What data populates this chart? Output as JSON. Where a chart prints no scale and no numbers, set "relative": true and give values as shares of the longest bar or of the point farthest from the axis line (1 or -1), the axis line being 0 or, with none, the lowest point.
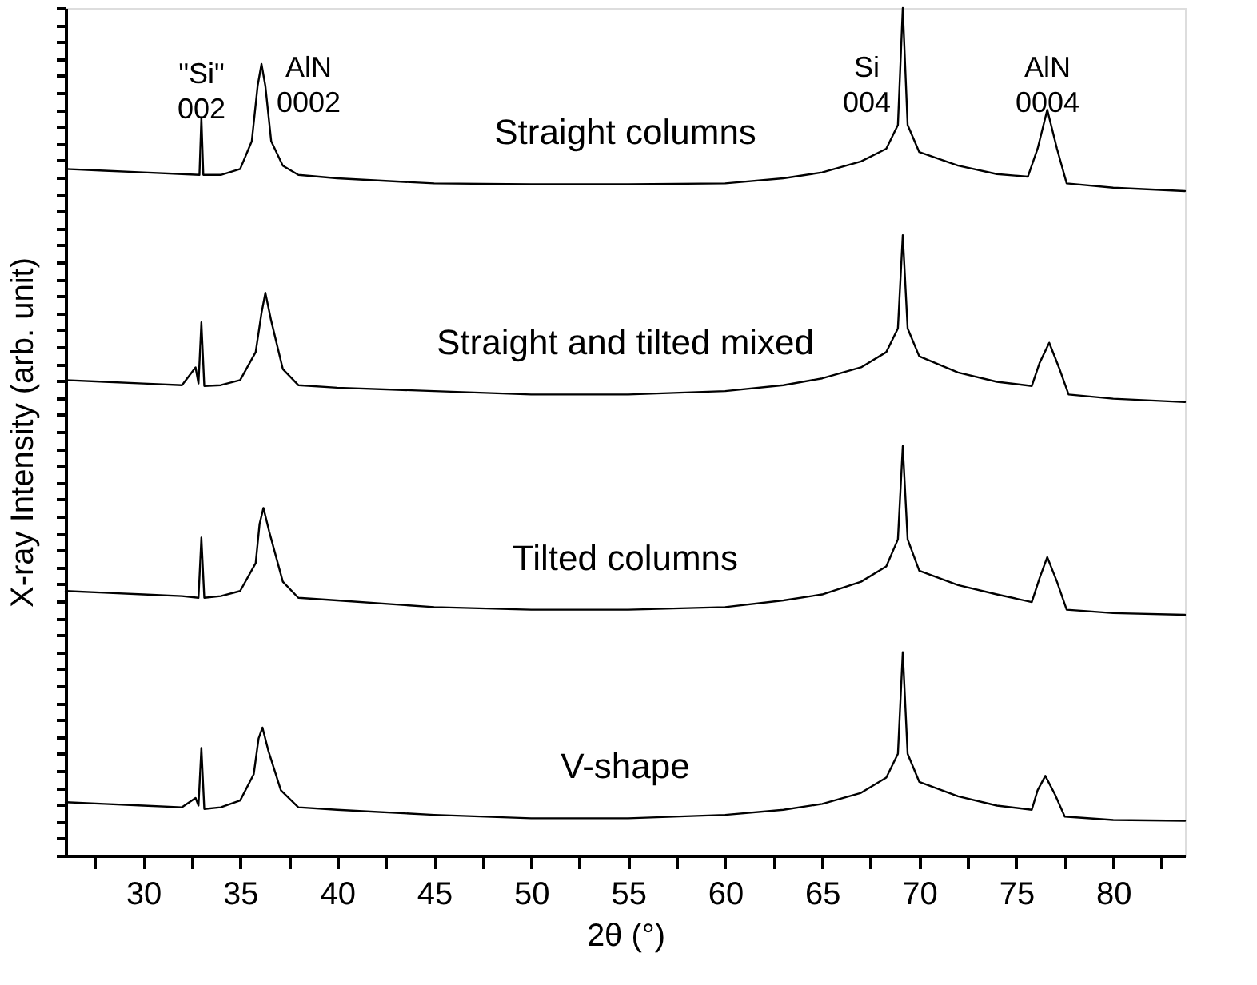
{
  "chart_data": {
    "type": "line",
    "xlabel": "2θ (°)",
    "ylabel": "X-ray Intensity (arb. unit)",
    "relative": true,
    "tick_labels": "x",
    "grid": false,
    "marker": "none",
    "line_style": "solid",
    "xlim": [
      26,
      83.7
    ],
    "xticks": [
      {
        "value": 27.5,
        "label": null
      },
      30,
      {
        "value": 32.5,
        "label": null
      },
      35,
      {
        "value": 37.5,
        "label": null
      },
      40,
      {
        "value": 42.5,
        "label": null
      },
      45,
      {
        "value": 47.5,
        "label": null
      },
      50,
      {
        "value": 52.5,
        "label": null
      },
      55,
      {
        "value": 57.5,
        "label": null
      },
      60,
      {
        "value": 62.5,
        "label": null
      },
      65,
      {
        "value": 67.5,
        "label": null
      },
      70,
      {
        "value": 72.5,
        "label": null
      },
      75,
      {
        "value": 77.5,
        "label": null
      },
      80,
      {
        "value": 82.5,
        "label": null
      }
    ],
    "annotations": [
      "\"Si\"\n002",
      "AlN\n0002",
      "Si\n004",
      "AlN\n0004"
    ],
    "series": [
      {
        "name": "Straight columns",
        "color": "#000000",
        "x": [
          26,
          28,
          30,
          32,
          32.9,
          33.0,
          33.1,
          34,
          35,
          35.6,
          35.9,
          36.1,
          36.3,
          36.6,
          37.2,
          38,
          40,
          45,
          50,
          55,
          60,
          63,
          65,
          67,
          68.3,
          68.9,
          69.15,
          69.4,
          70,
          72,
          74,
          75.6,
          76.1,
          76.6,
          77.1,
          77.6,
          80,
          83.7
        ],
        "values": [
          0.81,
          0.808,
          0.806,
          0.804,
          0.803,
          0.871,
          0.803,
          0.803,
          0.81,
          0.843,
          0.908,
          0.934,
          0.908,
          0.843,
          0.814,
          0.803,
          0.799,
          0.793,
          0.792,
          0.792,
          0.793,
          0.799,
          0.806,
          0.819,
          0.834,
          0.862,
          1.0,
          0.862,
          0.83,
          0.814,
          0.804,
          0.801,
          0.834,
          0.88,
          0.834,
          0.793,
          0.788,
          0.784
        ]
      },
      {
        "name": "Straight and tilted mixed",
        "color": "#000000",
        "x": [
          26,
          28,
          30,
          32,
          32.7,
          32.85,
          33.0,
          33.15,
          34,
          35,
          35.8,
          36.1,
          36.3,
          36.6,
          37.2,
          38,
          40,
          45,
          50,
          55,
          60,
          63,
          65,
          67,
          68.3,
          68.9,
          69.15,
          69.4,
          70,
          72,
          74,
          75.8,
          76.2,
          76.7,
          77.2,
          77.7,
          80,
          83.7
        ],
        "values": [
          0.561,
          0.559,
          0.557,
          0.555,
          0.576,
          0.557,
          0.629,
          0.554,
          0.555,
          0.561,
          0.594,
          0.64,
          0.664,
          0.631,
          0.574,
          0.555,
          0.552,
          0.548,
          0.544,
          0.544,
          0.548,
          0.555,
          0.563,
          0.576,
          0.594,
          0.622,
          0.732,
          0.622,
          0.589,
          0.57,
          0.559,
          0.554,
          0.581,
          0.605,
          0.576,
          0.544,
          0.539,
          0.535
        ]
      },
      {
        "name": "Tilted columns",
        "color": "#000000",
        "x": [
          26,
          28,
          30,
          32,
          32.85,
          33.0,
          33.15,
          34,
          35,
          35.8,
          36.0,
          36.2,
          36.5,
          37.2,
          38,
          40,
          45,
          50,
          55,
          60,
          63,
          65,
          67,
          68.3,
          68.9,
          69.15,
          69.4,
          70,
          72,
          74,
          75.8,
          76.2,
          76.6,
          77.1,
          77.6,
          80,
          83.7
        ],
        "values": [
          0.312,
          0.31,
          0.308,
          0.306,
          0.304,
          0.375,
          0.304,
          0.306,
          0.312,
          0.345,
          0.391,
          0.41,
          0.382,
          0.323,
          0.304,
          0.301,
          0.293,
          0.29,
          0.29,
          0.293,
          0.301,
          0.308,
          0.323,
          0.341,
          0.373,
          0.483,
          0.373,
          0.336,
          0.319,
          0.308,
          0.299,
          0.327,
          0.352,
          0.323,
          0.29,
          0.286,
          0.284
        ]
      },
      {
        "name": "V-shape",
        "color": "#000000",
        "x": [
          26,
          28,
          30,
          32,
          32.7,
          32.85,
          33.0,
          33.15,
          34,
          35,
          35.7,
          35.95,
          36.15,
          36.45,
          37.1,
          38,
          40,
          45,
          50,
          55,
          60,
          63,
          65,
          67,
          68.3,
          68.9,
          69.15,
          69.4,
          70,
          72,
          74,
          75.8,
          76.1,
          76.5,
          77.0,
          77.5,
          80,
          83.7
        ],
        "values": [
          0.063,
          0.061,
          0.059,
          0.057,
          0.068,
          0.059,
          0.127,
          0.055,
          0.057,
          0.065,
          0.096,
          0.138,
          0.151,
          0.124,
          0.077,
          0.057,
          0.054,
          0.048,
          0.044,
          0.044,
          0.048,
          0.054,
          0.061,
          0.074,
          0.092,
          0.12,
          0.24,
          0.12,
          0.087,
          0.07,
          0.059,
          0.054,
          0.077,
          0.094,
          0.072,
          0.046,
          0.042,
          0.041
        ]
      }
    ]
  }
}
